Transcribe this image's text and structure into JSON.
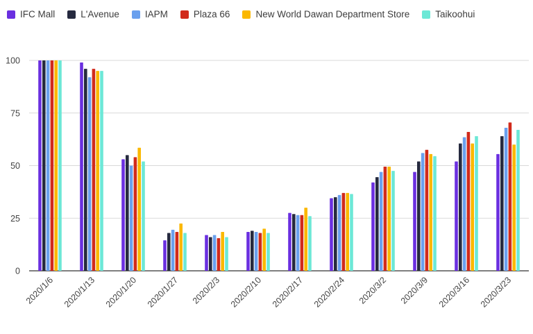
{
  "chart_data": {
    "type": "bar",
    "title": "",
    "xlabel": "",
    "ylabel": "",
    "ylim": [
      0,
      100
    ],
    "yticks": [
      0,
      25,
      50,
      75,
      100
    ],
    "grid": true,
    "legend_position": "top",
    "categories": [
      "2020/1/6",
      "2020/1/13",
      "2020/1/20",
      "2020/1/27",
      "2020/2/3",
      "2020/2/10",
      "2020/2/17",
      "2020/2/24",
      "2020/3/2",
      "2020/3/9",
      "2020/3/16",
      "2020/3/23"
    ],
    "series": [
      {
        "name": "IFC Mall",
        "color": "#6a2fe0",
        "values": [
          100,
          99,
          53,
          14.5,
          17,
          18.5,
          27.5,
          34.5,
          42,
          47,
          52,
          55.5
        ]
      },
      {
        "name": "L'Avenue",
        "color": "#262a3f",
        "values": [
          100,
          96,
          55,
          18,
          16,
          19,
          27,
          35,
          44.5,
          52,
          60.5,
          64
        ]
      },
      {
        "name": "IAPM",
        "color": "#6aa0ee",
        "values": [
          100,
          92,
          50,
          19.5,
          17,
          18.5,
          26.5,
          36,
          47,
          56,
          63.5,
          68
        ]
      },
      {
        "name": "Plaza 66",
        "color": "#d12a1b",
        "values": [
          100,
          96,
          54,
          18.5,
          15.5,
          18,
          26.5,
          37,
          49.5,
          57.5,
          66,
          70.5
        ]
      },
      {
        "name": "New World Dawan Department Store",
        "color": "#fbb800",
        "values": [
          100,
          95,
          58.5,
          22.5,
          18.5,
          20,
          30,
          37,
          49.5,
          55.5,
          60.5,
          60
        ]
      },
      {
        "name": "Taikoohui",
        "color": "#6ce8d6",
        "values": [
          100,
          95,
          52,
          18,
          16,
          18,
          26,
          36.5,
          47.5,
          54.5,
          64,
          67
        ]
      }
    ]
  }
}
